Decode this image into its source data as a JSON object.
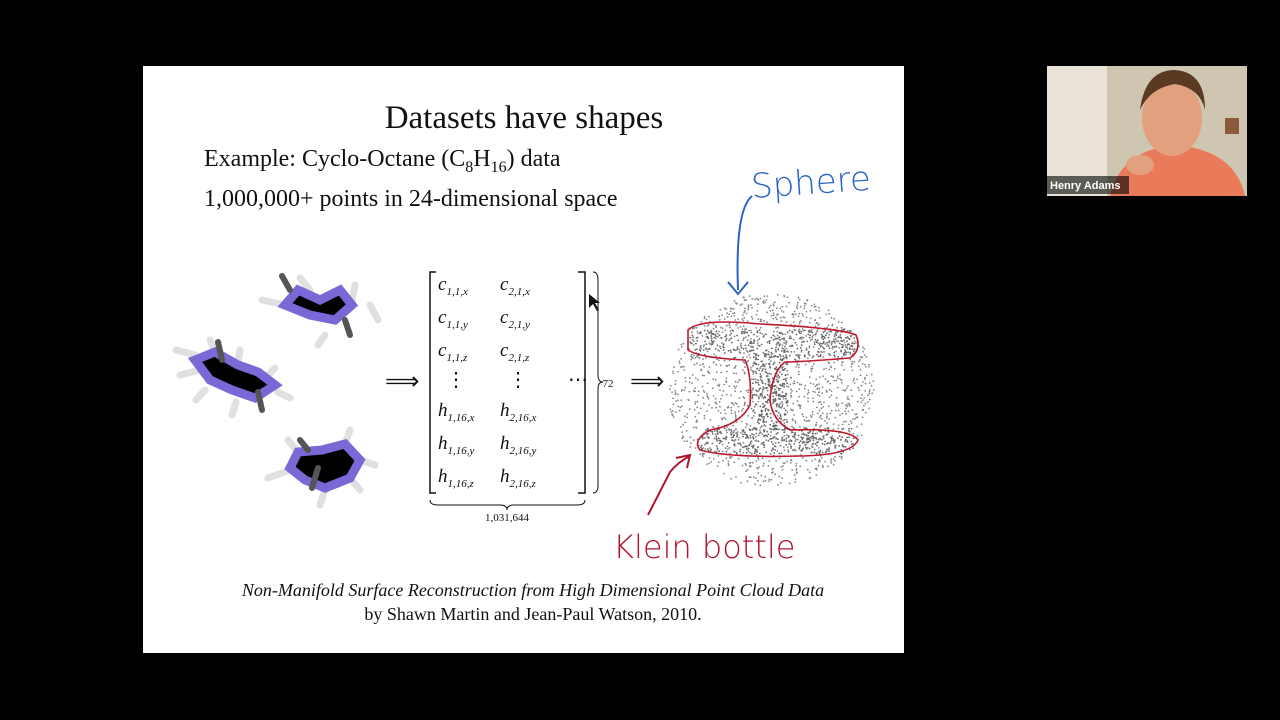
{
  "slide": {
    "title": "Datasets have shapes",
    "example_line": {
      "before": "Example: Cyclo-Octane (C",
      "sub1": "8",
      "mid": "H",
      "sub2": "16",
      "after": ") data"
    },
    "points_line": "1,000,000+ points in 24-dimensional space",
    "arrow_symbol": "⟹",
    "matrix": {
      "rows": [
        [
          {
            "base": "c",
            "sub": "1,1,x"
          },
          {
            "base": "c",
            "sub": "2,1,x"
          }
        ],
        [
          {
            "base": "c",
            "sub": "1,1,y"
          },
          {
            "base": "c",
            "sub": "2,1,y"
          }
        ],
        [
          {
            "base": "c",
            "sub": "1,1,z"
          },
          {
            "base": "c",
            "sub": "2,1,z"
          }
        ],
        [
          "⋮",
          "⋮",
          "⋯"
        ],
        [
          {
            "base": "h",
            "sub": "1,16,x"
          },
          {
            "base": "h",
            "sub": "2,16,x"
          }
        ],
        [
          {
            "base": "h",
            "sub": "1,16,y"
          },
          {
            "base": "h",
            "sub": "2,16,y"
          }
        ],
        [
          {
            "base": "h",
            "sub": "1,16,z"
          },
          {
            "base": "h",
            "sub": "2,16,z"
          }
        ]
      ],
      "row_count": "72",
      "column_count": "1,031,644"
    },
    "citation_title": "Non-Manifold Surface Reconstruction from High Dimensional Point Cloud Data",
    "citation_authors": "by Shawn Martin and Jean-Paul Watson, 2010."
  },
  "annotations": {
    "sphere": "Sphere",
    "klein_bottle": "Klein bottle"
  },
  "participant": {
    "name": "Henry Adams"
  }
}
